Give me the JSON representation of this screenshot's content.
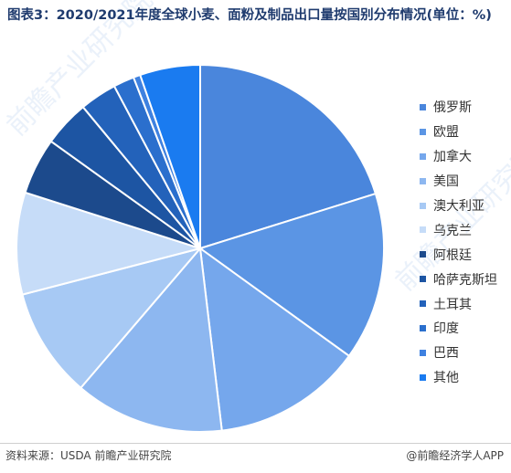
{
  "title": "图表3：2020/2021年度全球小麦、面粉及制品出口量按国别分布情况(单位：%)",
  "source": "资料来源：USDA 前瞻产业研究院",
  "credit": "@前瞻经济学人APP",
  "watermark": "前瞻产业研究院",
  "chart_data": {
    "type": "pie",
    "title": "图表3：2020/2021年度全球小麦、面粉及制品出口量按国别分布情况(单位：%)",
    "legend_position": "right",
    "unit": "%",
    "series": [
      {
        "name": "俄罗斯",
        "value": 19.8,
        "color": "#4a86dc"
      },
      {
        "name": "欧盟",
        "value": 14.5,
        "color": "#5b95e4"
      },
      {
        "name": "加拿大",
        "value": 12.9,
        "color": "#75a7ec"
      },
      {
        "name": "美国",
        "value": 12.9,
        "color": "#8db7f0"
      },
      {
        "name": "澳大利亚",
        "value": 9.5,
        "color": "#a7c9f4"
      },
      {
        "name": "乌克兰",
        "value": 8.8,
        "color": "#c6dcf8"
      },
      {
        "name": "阿根廷",
        "value": 4.9,
        "color": "#1c4a8c"
      },
      {
        "name": "哈萨克斯坦",
        "value": 4.0,
        "color": "#1d55a3"
      },
      {
        "name": "土耳其",
        "value": 3.2,
        "color": "#2362ba"
      },
      {
        "name": "印度",
        "value": 1.8,
        "color": "#2b6fcd"
      },
      {
        "name": "巴西",
        "value": 0.6,
        "color": "#3e81e0"
      },
      {
        "name": "其他",
        "value": 5.2,
        "color": "#1a7bf0"
      }
    ]
  }
}
